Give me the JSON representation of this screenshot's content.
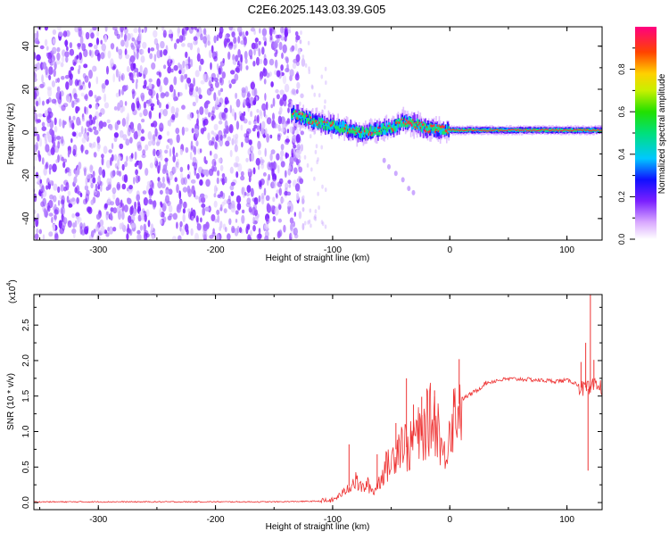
{
  "title": "C2E6.2025.143.03.39.G05",
  "chart_data": [
    {
      "type": "heatmap",
      "xlabel": "Height of straight line (km)",
      "ylabel": "Frequency (Hz)",
      "xlim": [
        -355,
        130
      ],
      "ylim": [
        -50,
        49
      ],
      "xticks": [
        -300,
        -200,
        -100,
        0,
        100
      ],
      "yticks": [
        -40,
        -20,
        0,
        20,
        40
      ],
      "noise_region_x": [
        -355,
        -128
      ],
      "ridge": {
        "x": [
          -135,
          -120,
          -110,
          -100,
          -90,
          -80,
          -70,
          -60,
          -50,
          -40,
          -30,
          -20,
          0,
          20,
          50,
          80,
          100,
          115,
          130
        ],
        "y": [
          9,
          6,
          4,
          3,
          2,
          0,
          0,
          1,
          2,
          5,
          4,
          2,
          1,
          1,
          1,
          1,
          1,
          1,
          1
        ]
      },
      "tail": {
        "x": [
          -56,
          -52,
          -46,
          -40,
          -35,
          -31
        ],
        "y": [
          -13,
          -16,
          -19,
          -22,
          -26,
          -28
        ]
      },
      "colorbar": {
        "label": "Normalized spectral amplitude",
        "range": [
          0,
          1
        ],
        "ticks": [
          0.0,
          0.2,
          0.4,
          0.6,
          0.8
        ],
        "tick_labels": [
          "0.0",
          "0.2",
          "0.4",
          "0.6",
          "0.8"
        ]
      }
    },
    {
      "type": "line",
      "xlabel": "Height of straight line (km)",
      "ylabel": "SNR (10 * v/v)",
      "scale_label": "(x10",
      "scale_exp": "4",
      "xlim": [
        -355,
        130
      ],
      "ylim": [
        -0.1,
        2.93
      ],
      "xticks": [
        -300,
        -200,
        -100,
        0,
        100
      ],
      "yticks": [
        0.0,
        0.5,
        1.0,
        1.5,
        2.0,
        2.5
      ],
      "ytick_labels": [
        "0.0",
        "0.5",
        "1.0",
        "1.5",
        "2.0",
        "2.5"
      ],
      "color": "#ee3333",
      "series": [
        {
          "x": [
            -355,
            -300,
            -250,
            -200,
            -150,
            -110,
            -100,
            -90,
            -85,
            -80,
            -75,
            -70,
            -65,
            -60,
            -55,
            -50,
            -45,
            -40,
            -35,
            -30,
            -25,
            -20,
            -15,
            -10,
            -5,
            0,
            5,
            10,
            15,
            20,
            25,
            30,
            40,
            50,
            60,
            70,
            80,
            90,
            100,
            105,
            110,
            113,
            116,
            118,
            120,
            122,
            125,
            130
          ],
          "y": [
            0.01,
            0.01,
            0.01,
            0.01,
            0.01,
            0.02,
            0.03,
            0.15,
            0.25,
            0.3,
            0.2,
            0.25,
            0.15,
            0.3,
            0.5,
            0.55,
            0.8,
            0.9,
            0.7,
            1.0,
            0.9,
            1.1,
            1.2,
            1.1,
            0.6,
            1.1,
            1.3,
            1.45,
            1.5,
            1.55,
            1.6,
            1.68,
            1.72,
            1.74,
            1.74,
            1.73,
            1.72,
            1.71,
            1.72,
            1.7,
            1.65,
            1.6,
            1.62,
            1.6,
            1.55,
            1.63,
            1.63,
            1.62
          ]
        }
      ],
      "spikes": [
        {
          "x": -86,
          "y": 0.82
        },
        {
          "x": -62,
          "y": 0.68
        },
        {
          "x": -46,
          "y": 1.12
        },
        {
          "x": -37,
          "y": 1.75
        },
        {
          "x": -31,
          "y": 1.38
        },
        {
          "x": -24,
          "y": 1.49
        },
        {
          "x": -13,
          "y": 1.58
        },
        {
          "x": 8,
          "y": 2.02
        },
        {
          "x": 112,
          "y": 1.98
        },
        {
          "x": 116,
          "y": 2.25
        },
        {
          "x": 118,
          "y": 0.45
        },
        {
          "x": 120,
          "y": 2.93
        },
        {
          "x": 123,
          "y": 2.01
        }
      ]
    }
  ]
}
